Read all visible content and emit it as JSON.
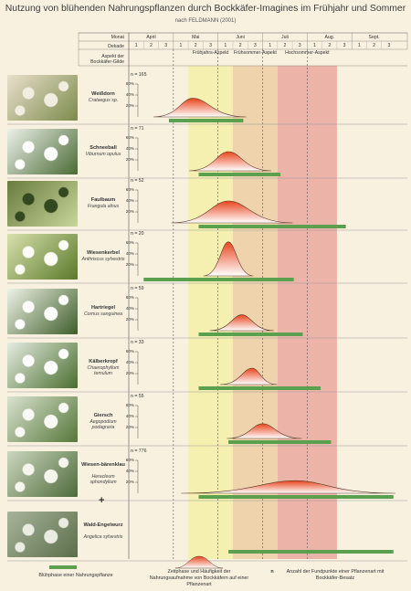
{
  "title": "Nutzung von blühenden Nahrungspflanzen durch Bockkäfer-Imagines  im Frühjahr und Sommer",
  "subtitle": "nach FELDMANN (2001)",
  "header": {
    "month_label": "Monat",
    "decade_label": "Dekade",
    "aspect_label": "Aspekt der Bockkäfer-Gilde",
    "months": [
      "April",
      "Mai",
      "Juni",
      "Juli",
      "Aug.",
      "Sept."
    ],
    "decades": [
      "1",
      "2",
      "3",
      "1",
      "2",
      "3",
      "1",
      "2",
      "3",
      "1",
      "2",
      "3",
      "1",
      "2",
      "3",
      "1",
      "2",
      "3"
    ],
    "aspects": [
      "Frühjahrs-Aspekt",
      "Frühsommer-Aspekt",
      "Hochsommer-Aspekt"
    ]
  },
  "colors": {
    "background": "#f8f1e0",
    "spring": "#f5efb0",
    "early_summer": "#efd3ac",
    "high_summer": "#ecb3a8",
    "bloom_bar": "#5aa04e",
    "curve_red": "#e8441c"
  },
  "chart_data": {
    "type": "area",
    "x_axis": "Dekade (April 1 – Sept. 3)",
    "y_ticks": [
      "60%",
      "40%",
      "20%"
    ],
    "ylim": [
      0,
      60
    ],
    "aspect_ranges": [
      {
        "name": "Frühjahrs-Aspekt",
        "from_decade": 4,
        "to_decade": 7
      },
      {
        "name": "Frühsommer-Aspekt",
        "from_decade": 7,
        "to_decade": 10
      },
      {
        "name": "Hochsommer-Aspekt",
        "from_decade": 10,
        "to_decade": 14
      }
    ],
    "plants": [
      {
        "name": "Weißdorn",
        "sci": "Crataegus sp.",
        "n": "n = 165",
        "bloom": [
          2.7,
          7.7
        ],
        "peak_decade": 4.3,
        "peak_pct": 34,
        "spread_left": 1.1,
        "spread_right": 1.5
      },
      {
        "name": "Schneeball",
        "sci": "Viburnum opulus",
        "n": "n = 71",
        "bloom": [
          4.7,
          10.2
        ],
        "peak_decade": 6.7,
        "peak_pct": 35,
        "spread_left": 1.1,
        "spread_right": 1.2
      },
      {
        "name": "Faulbaum",
        "sci": "Frangula alnus",
        "n": "n = 52",
        "bloom": [
          4.7,
          14.6
        ],
        "peak_decade": 6.7,
        "peak_pct": 40,
        "spread_left": 1.6,
        "spread_right": 1.8
      },
      {
        "name": "Wiesenkerbel",
        "sci": "Anthriscus sylvestris",
        "n": "n = 20",
        "bloom": [
          1.0,
          11.1
        ],
        "peak_decade": 6.7,
        "peak_pct": 62,
        "spread_left": 0.7,
        "spread_right": 0.7
      },
      {
        "name": "Hartriegel",
        "sci": "Cornus sanguinea",
        "n": "n = 59",
        "bloom": [
          4.7,
          11.7
        ],
        "peak_decade": 7.6,
        "peak_pct": 29,
        "spread_left": 0.9,
        "spread_right": 0.9
      },
      {
        "name": "Kälberkropf",
        "sci": "Chaerophyllum temulum",
        "n": "n = 33",
        "bloom": [
          4.7,
          12.9
        ],
        "peak_decade": 8.3,
        "peak_pct": 30,
        "spread_left": 0.9,
        "spread_right": 0.7
      },
      {
        "name": "Giersch",
        "sci": "Aegopodium podagraria",
        "n": "n = 55",
        "bloom": [
          6.7,
          13.6
        ],
        "peak_decade": 9.0,
        "peak_pct": 27,
        "spread_left": 1.0,
        "spread_right": 1.1
      },
      {
        "name": "Wiesen-bärenklau",
        "sci": "Heracleum sphondylium",
        "n": "n = 776",
        "bloom": [
          4.7,
          17.8
        ],
        "peak_decade": 11.2,
        "peak_pct": 23,
        "spread_left": 3.2,
        "spread_right": 2.8
      },
      {
        "name": "Wald-Engelwurz",
        "sci": "Angelica sylvestris",
        "n": "",
        "bloom": [
          6.7,
          17.8
        ],
        "peak_decade": null,
        "peak_pct": null
      }
    ]
  },
  "legend": {
    "bloom": "Blühphase einer  Nahrungspflanze",
    "curve": "Zeitphase und Häufigkeit der Nahrungsaufnahme von Bockkäfern auf einer Pflanzenart",
    "n": "n",
    "n_text": "Anzahl der Fundpunkte einer Pflanzenart mit Bockkäfer-Besatz"
  }
}
